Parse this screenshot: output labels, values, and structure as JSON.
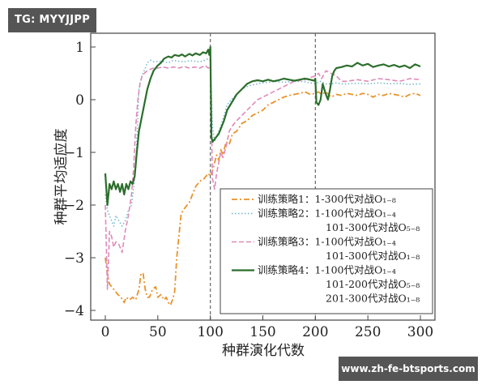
{
  "watermarks": {
    "top": "TG: MYYJJPP",
    "bottom": "www.zh-fe-btsports.com"
  },
  "chart_data": {
    "type": "line",
    "title": "",
    "xlabel": "种群演化代数",
    "ylabel": "种群平均适应度",
    "xlim": [
      -12,
      315
    ],
    "ylim": [
      -4.2,
      1.27
    ],
    "xticks": [
      0,
      50,
      100,
      150,
      200,
      250,
      300
    ],
    "yticks": [
      1,
      0,
      -1,
      -2,
      -3,
      -4
    ],
    "ytick_labels": [
      "1",
      "0",
      "−1",
      "−2",
      "−3",
      "−4"
    ],
    "grid": false,
    "vlines": [
      100,
      200
    ],
    "legend_position": "lower right",
    "series": [
      {
        "name": "训练策略1",
        "label_lines": [
          "训练策略1：1-300代对战O₁₋₈"
        ],
        "color": "#e8922a",
        "dash": "7,3,2,3",
        "width": 1.8,
        "x": [
          0,
          2,
          4,
          6,
          8,
          10,
          12,
          15,
          18,
          20,
          23,
          26,
          29,
          32,
          34,
          36,
          38,
          40,
          42,
          45,
          48,
          50,
          53,
          56,
          58,
          60,
          62,
          64,
          66,
          68,
          70,
          72,
          74,
          76,
          78,
          80,
          82,
          84,
          86,
          88,
          90,
          92,
          94,
          96,
          98,
          100,
          102,
          104,
          106,
          108,
          110,
          112,
          115,
          118,
          121,
          125,
          130,
          135,
          140,
          145,
          150,
          155,
          160,
          165,
          170,
          175,
          180,
          185,
          190,
          195,
          200,
          203,
          206,
          210,
          215,
          220,
          225,
          230,
          235,
          240,
          245,
          250,
          255,
          260,
          265,
          270,
          275,
          280,
          285,
          290,
          295,
          300
        ],
        "values": [
          -3.0,
          -3.3,
          -3.5,
          -3.55,
          -3.6,
          -3.65,
          -3.7,
          -3.75,
          -3.85,
          -3.75,
          -3.8,
          -3.75,
          -3.8,
          -3.6,
          -3.3,
          -3.3,
          -3.6,
          -3.75,
          -3.75,
          -3.6,
          -3.55,
          -3.75,
          -3.7,
          -3.8,
          -3.75,
          -3.85,
          -3.9,
          -3.8,
          -3.65,
          -3.0,
          -2.6,
          -2.2,
          -2.1,
          -2.05,
          -2.0,
          -1.95,
          -1.85,
          -1.75,
          -1.65,
          -1.6,
          -1.55,
          -1.52,
          -1.5,
          -1.45,
          -1.4,
          -1.45,
          -1.35,
          -1.2,
          -1.05,
          -1.15,
          -0.95,
          -1.05,
          -0.8,
          -0.85,
          -0.65,
          -0.6,
          -0.45,
          -0.4,
          -0.3,
          -0.25,
          -0.2,
          -0.1,
          -0.05,
          0.0,
          0.05,
          0.08,
          0.1,
          0.12,
          0.15,
          0.1,
          0.12,
          0.15,
          0.1,
          0.15,
          0.05,
          0.1,
          0.08,
          0.12,
          0.1,
          0.08,
          0.12,
          0.1,
          0.05,
          0.1,
          0.08,
          0.12,
          0.1,
          0.08,
          0.05,
          0.1,
          0.12,
          0.08
        ]
      },
      {
        "name": "训练策略2",
        "label_lines": [
          "训练策略2：1-100代对战O₁₋₄",
          "101-300代对战O₅₋₈"
        ],
        "color": "#6fb8c8",
        "dash": "1.5,2.5",
        "width": 1.5,
        "x": [
          0,
          2,
          4,
          6,
          8,
          10,
          13,
          16,
          19,
          22,
          25,
          28,
          30,
          32,
          34,
          36,
          38,
          40,
          43,
          46,
          50,
          55,
          60,
          65,
          70,
          75,
          80,
          85,
          90,
          95,
          98,
          100,
          102,
          104,
          106,
          108,
          110,
          113,
          116,
          120,
          125,
          130,
          135,
          140,
          145,
          150,
          155,
          160,
          170,
          180,
          190,
          200,
          205,
          210,
          215,
          220,
          225,
          230,
          240,
          250,
          260,
          270,
          280,
          290,
          300
        ],
        "values": [
          -1.8,
          -2.1,
          -2.2,
          -2.3,
          -2.4,
          -2.2,
          -2.3,
          -2.4,
          -2.3,
          -2.1,
          -2.0,
          -1.5,
          -0.8,
          0.2,
          0.4,
          0.5,
          0.6,
          0.7,
          0.75,
          0.72,
          0.73,
          0.72,
          0.7,
          0.75,
          0.73,
          0.72,
          0.74,
          0.73,
          0.72,
          0.75,
          0.78,
          0.75,
          -0.5,
          -0.8,
          -0.7,
          -0.6,
          -0.5,
          -0.3,
          -0.1,
          0.0,
          0.1,
          0.2,
          0.25,
          0.28,
          0.3,
          0.32,
          0.33,
          0.35,
          0.33,
          0.35,
          0.34,
          0.3,
          0.35,
          0.3,
          0.3,
          0.32,
          0.3,
          0.3,
          0.31,
          0.3,
          0.32,
          0.3,
          0.31,
          0.29,
          0.3
        ]
      },
      {
        "name": "训练策略3",
        "label_lines": [
          "训练策略3：1-100代对战O₁₋₄",
          "101-300代对战O₁₋₈"
        ],
        "color": "#e08ab8",
        "dash": "6,3",
        "width": 1.6,
        "x": [
          0,
          2,
          4,
          6,
          8,
          10,
          13,
          16,
          19,
          22,
          25,
          27,
          29,
          31,
          33,
          35,
          37,
          40,
          43,
          46,
          50,
          55,
          60,
          65,
          70,
          75,
          80,
          85,
          90,
          95,
          98,
          100,
          102,
          104,
          106,
          108,
          110,
          112,
          115,
          118,
          121,
          125,
          130,
          135,
          140,
          145,
          150,
          155,
          160,
          170,
          180,
          190,
          195,
          200,
          203,
          206,
          210,
          215,
          220,
          225,
          230,
          240,
          250,
          260,
          270,
          280,
          290,
          300
        ],
        "values": [
          -2.0,
          -3.6,
          -2.5,
          -2.6,
          -2.8,
          -2.7,
          -2.75,
          -2.9,
          -2.5,
          -2.2,
          -1.8,
          -1.3,
          -0.5,
          0.0,
          0.3,
          0.45,
          0.5,
          0.55,
          0.58,
          0.6,
          0.6,
          0.62,
          0.6,
          0.62,
          0.6,
          0.63,
          0.6,
          0.62,
          0.6,
          0.65,
          0.6,
          0.62,
          -1.5,
          -1.7,
          -1.4,
          -1.2,
          -1.0,
          -1.1,
          -0.9,
          -0.6,
          -0.5,
          -0.4,
          -0.3,
          -0.2,
          -0.1,
          0.0,
          0.05,
          0.1,
          0.15,
          0.25,
          0.35,
          0.38,
          0.42,
          0.45,
          0.5,
          0.4,
          0.55,
          0.5,
          0.45,
          0.35,
          0.35,
          0.38,
          0.35,
          0.4,
          0.38,
          0.35,
          0.4,
          0.38
        ]
      },
      {
        "name": "训练策略4",
        "label_lines": [
          "训练策略4：1-100代对战O₁₋₄",
          "101-200代对战O₅₋₈",
          "201-300代对战O₁₋₈"
        ],
        "color": "#2c6e2c",
        "dash": "",
        "width": 2.2,
        "x": [
          0,
          2,
          4,
          6,
          8,
          10,
          12,
          14,
          16,
          18,
          20,
          22,
          24,
          26,
          28,
          30,
          32,
          34,
          36,
          38,
          40,
          43,
          46,
          50,
          53,
          56,
          60,
          63,
          66,
          70,
          73,
          76,
          80,
          83,
          86,
          90,
          93,
          96,
          98,
          99,
          100,
          101,
          102,
          104,
          106,
          108,
          110,
          113,
          116,
          119,
          122,
          125,
          130,
          135,
          140,
          145,
          150,
          155,
          160,
          165,
          170,
          175,
          180,
          185,
          190,
          195,
          199,
          200,
          201,
          203,
          205,
          207,
          210,
          212,
          214,
          216,
          218,
          220,
          225,
          230,
          235,
          240,
          245,
          250,
          255,
          260,
          265,
          270,
          275,
          280,
          285,
          290,
          295,
          300
        ],
        "values": [
          -1.4,
          -2.0,
          -1.6,
          -1.7,
          -1.55,
          -1.7,
          -1.6,
          -1.75,
          -1.6,
          -1.8,
          -1.6,
          -1.7,
          -1.55,
          -1.6,
          -1.45,
          -1.0,
          -0.6,
          -0.4,
          -0.2,
          0.0,
          0.2,
          0.4,
          0.55,
          0.65,
          0.7,
          0.78,
          0.82,
          0.8,
          0.85,
          0.83,
          0.86,
          0.82,
          0.87,
          0.84,
          0.88,
          0.85,
          0.9,
          0.88,
          0.95,
          0.85,
          1.0,
          -0.7,
          -0.8,
          -0.75,
          -0.7,
          -0.65,
          -0.55,
          -0.4,
          -0.2,
          -0.1,
          0.0,
          0.1,
          0.2,
          0.3,
          0.35,
          0.37,
          0.35,
          0.38,
          0.35,
          0.37,
          0.4,
          0.38,
          0.36,
          0.38,
          0.4,
          0.38,
          0.36,
          0.4,
          -0.05,
          -0.1,
          0.0,
          0.3,
          0.1,
          0.0,
          0.2,
          0.45,
          0.55,
          0.6,
          0.62,
          0.65,
          0.63,
          0.7,
          0.65,
          0.68,
          0.62,
          0.65,
          0.67,
          0.63,
          0.66,
          0.62,
          0.65,
          0.6,
          0.67,
          0.63
        ]
      }
    ]
  }
}
